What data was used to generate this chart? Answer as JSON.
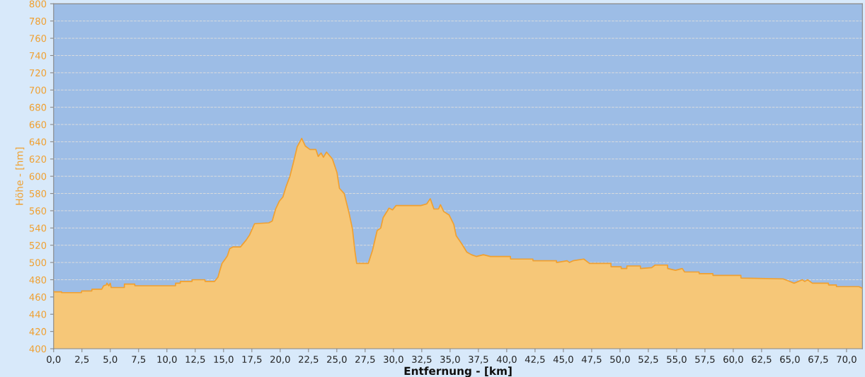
{
  "chart_data": {
    "type": "area",
    "xlabel": "Entfernung - [km]",
    "ylabel": "Höhe - [hm]",
    "xlim": [
      0,
      71.4
    ],
    "ylim": [
      400,
      800
    ],
    "xticks": [
      {
        "value": 0,
        "label": "0,0"
      },
      {
        "value": 2.5,
        "label": "2,5"
      },
      {
        "value": 5,
        "label": "5,0"
      },
      {
        "value": 7.5,
        "label": "7,5"
      },
      {
        "value": 10,
        "label": "10,0"
      },
      {
        "value": 12.5,
        "label": "12,5"
      },
      {
        "value": 15,
        "label": "15,0"
      },
      {
        "value": 17.5,
        "label": "17,5"
      },
      {
        "value": 20,
        "label": "20,0"
      },
      {
        "value": 22.5,
        "label": "22,5"
      },
      {
        "value": 25,
        "label": "25,0"
      },
      {
        "value": 27.5,
        "label": "27,5"
      },
      {
        "value": 30,
        "label": "30,0"
      },
      {
        "value": 32.5,
        "label": "32,5"
      },
      {
        "value": 35,
        "label": "35,0"
      },
      {
        "value": 37.5,
        "label": "37,5"
      },
      {
        "value": 40,
        "label": "40,0"
      },
      {
        "value": 42.5,
        "label": "42,5"
      },
      {
        "value": 45,
        "label": "45,0"
      },
      {
        "value": 47.5,
        "label": "47,5"
      },
      {
        "value": 50,
        "label": "50,0"
      },
      {
        "value": 52.5,
        "label": "52,5"
      },
      {
        "value": 55,
        "label": "55,0"
      },
      {
        "value": 57.5,
        "label": "57,5"
      },
      {
        "value": 60,
        "label": "60,0"
      },
      {
        "value": 62.5,
        "label": "62,5"
      },
      {
        "value": 65,
        "label": "65,0"
      },
      {
        "value": 67.5,
        "label": "67,5"
      },
      {
        "value": 70,
        "label": "70,0"
      }
    ],
    "yticks": [
      400,
      420,
      440,
      460,
      480,
      500,
      520,
      540,
      560,
      580,
      600,
      620,
      640,
      660,
      680,
      700,
      720,
      740,
      760,
      780,
      800
    ],
    "grid": "y",
    "line_style": "solid",
    "marker": "none",
    "series": [
      {
        "color": "#f0a030",
        "x": [
          0,
          0.7,
          0.71,
          2.46,
          2.47,
          3.37,
          3.38,
          4.25,
          4.41,
          4.66,
          4.7,
          4.87,
          5.0,
          5.08,
          5.18,
          6.24,
          6.25,
          7.16,
          7.17,
          10.76,
          10.77,
          11.18,
          11.19,
          12.22,
          12.23,
          13.36,
          13.37,
          14.2,
          14.51,
          14.66,
          14.87,
          15.15,
          15.35,
          15.55,
          15.82,
          16.49,
          17.0,
          17.3,
          17.74,
          19.0,
          19.3,
          19.6,
          19.92,
          20.24,
          20.55,
          20.86,
          21.17,
          21.5,
          21.9,
          22.22,
          22.63,
          23.15,
          23.36,
          23.61,
          23.82,
          24.09,
          24.61,
          25.02,
          25.23,
          25.65,
          26.07,
          26.38,
          26.59,
          26.75,
          27.78,
          28.15,
          28.56,
          28.88,
          29.09,
          29.61,
          29.92,
          30.23,
          32.42,
          32.94,
          33.25,
          33.57,
          33.98,
          34.15,
          34.44,
          34.92,
          35.33,
          35.54,
          36.06,
          36.48,
          36.89,
          37.31,
          37.94,
          38.56,
          40.33,
          40.34,
          42.31,
          42.32,
          44.39,
          44.4,
          45.33,
          45.54,
          45.85,
          46.8,
          47.3,
          49.2,
          49.21,
          50.1,
          50.11,
          50.6,
          50.61,
          51.8,
          51.81,
          52.8,
          53.1,
          54.2,
          54.21,
          54.9,
          55.5,
          55.7,
          56.98,
          56.99,
          58.2,
          58.21,
          60.67,
          60.68,
          64.4,
          65.0,
          65.37,
          66.1,
          66.3,
          66.56,
          66.98,
          68.4,
          68.41,
          69.1,
          69.11,
          71.1,
          71.4
        ],
        "values": [
          466,
          466,
          465,
          465,
          467,
          467,
          469,
          469,
          473,
          474,
          476,
          473,
          476,
          471,
          471,
          471,
          475,
          475,
          473,
          473,
          476,
          476,
          478,
          478,
          480,
          480,
          478,
          478,
          483,
          490,
          499,
          504,
          508,
          516,
          518,
          518,
          526,
          532,
          545,
          546,
          548,
          562,
          571,
          576,
          589,
          600,
          616,
          634,
          644,
          635,
          631,
          631,
          623,
          627,
          622,
          628,
          620,
          604,
          586,
          580,
          558,
          539,
          514,
          499,
          499,
          514,
          537,
          540,
          552,
          563,
          561,
          566,
          566,
          568,
          574,
          562,
          562,
          567,
          559,
          555,
          544,
          531,
          521,
          512,
          509,
          507,
          509,
          507,
          507,
          504,
          504,
          502,
          502,
          500,
          502,
          500,
          502,
          504,
          499,
          499,
          495,
          495,
          493,
          493,
          496,
          496,
          493,
          494,
          497,
          497,
          493,
          491,
          493,
          489,
          489,
          487,
          487,
          485,
          485,
          482,
          481,
          478,
          476,
          480,
          478,
          480,
          476,
          476,
          474,
          474,
          472,
          472,
          470
        ]
      }
    ]
  }
}
